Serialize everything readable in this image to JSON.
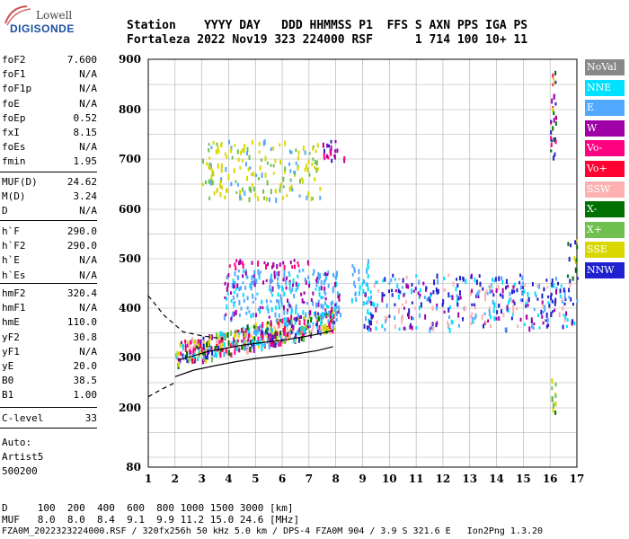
{
  "logo": {
    "top": "Lowell",
    "bottom": "DIGISONDE"
  },
  "header": {
    "row1": "Station    YYYY DAY   DDD HHMMSS P1  FFS S AXN PPS IGA PS",
    "row2": "Fortaleza 2022 Nov19 323 224000 RSF      1 714 100 10+ 11"
  },
  "params_group1": [
    {
      "label": "foF2",
      "value": "7.600"
    },
    {
      "label": "foF1",
      "value": "N/A"
    },
    {
      "label": "foF1p",
      "value": "N/A"
    },
    {
      "label": "foE",
      "value": "N/A"
    },
    {
      "label": "foEp",
      "value": "0.52"
    },
    {
      "label": "fxI",
      "value": "8.15"
    },
    {
      "label": "foEs",
      "value": "N/A"
    },
    {
      "label": "fmin",
      "value": "1.95"
    }
  ],
  "params_group2": [
    {
      "label": "MUF(D)",
      "value": "24.62"
    },
    {
      "label": "M(D)",
      "value": "3.24"
    },
    {
      "label": "D",
      "value": "N/A"
    }
  ],
  "params_group3": [
    {
      "label": "h`F",
      "value": "290.0"
    },
    {
      "label": "h`F2",
      "value": "290.0"
    },
    {
      "label": "h`E",
      "value": "N/A"
    },
    {
      "label": "h`Es",
      "value": "N/A"
    }
  ],
  "params_group4": [
    {
      "label": "hmF2",
      "value": "320.4"
    },
    {
      "label": "hmF1",
      "value": "N/A"
    },
    {
      "label": "hmE",
      "value": "110.0"
    },
    {
      "label": "yF2",
      "value": "30.8"
    },
    {
      "label": "yF1",
      "value": "N/A"
    },
    {
      "label": "yE",
      "value": "20.0"
    },
    {
      "label": "B0",
      "value": "38.5"
    },
    {
      "label": "B1",
      "value": "1.00"
    }
  ],
  "params_group5": [
    {
      "label": "C-level",
      "value": "33"
    }
  ],
  "auto": {
    "line1": "Auto:",
    "line2": "Artist5",
    "line3": "500200"
  },
  "legend": [
    {
      "label": "NoVal",
      "color": "#888888"
    },
    {
      "label": "NNE",
      "color": "#00e0ff"
    },
    {
      "label": "E",
      "color": "#50a8ff"
    },
    {
      "label": "W",
      "color": "#a000a8"
    },
    {
      "label": "Vo-",
      "color": "#ff0080"
    },
    {
      "label": "Vo+",
      "color": "#ff0030"
    },
    {
      "label": "SSW",
      "color": "#ffb0b0"
    },
    {
      "label": "X-",
      "color": "#007000"
    },
    {
      "label": "X+",
      "color": "#70c050"
    },
    {
      "label": "SSE",
      "color": "#d8d800"
    },
    {
      "label": "NNW",
      "color": "#2020d0"
    }
  ],
  "chart_data": {
    "type": "scatter",
    "xlim": [
      1,
      17
    ],
    "ylim": [
      80,
      900
    ],
    "x_ticks": [
      "1",
      "2",
      "3",
      "4",
      "5",
      "6",
      "7",
      "8",
      "9",
      "10",
      "11",
      "12",
      "13",
      "14",
      "15",
      "16",
      "17"
    ],
    "y_ticks": [
      "900",
      "800",
      "700",
      "600",
      "500",
      "400",
      "300",
      "200",
      "80"
    ],
    "grid": true,
    "profile_line": [
      [
        2.1,
        295
      ],
      [
        2.6,
        302
      ],
      [
        3.2,
        312
      ],
      [
        3.8,
        318
      ],
      [
        4.5,
        325
      ],
      [
        5.2,
        330
      ],
      [
        6.0,
        335
      ],
      [
        6.8,
        342
      ],
      [
        7.4,
        348
      ],
      [
        7.9,
        355
      ]
    ],
    "profile_line_lower": [
      [
        1.0,
        425
      ],
      [
        1.6,
        385
      ],
      [
        2.3,
        352
      ],
      [
        3.0,
        344
      ],
      [
        3.8,
        338
      ]
    ],
    "trace_lower": [
      [
        2.0,
        262
      ],
      [
        2.7,
        275
      ],
      [
        3.5,
        284
      ],
      [
        4.3,
        292
      ],
      [
        5.0,
        298
      ],
      [
        5.8,
        303
      ],
      [
        6.6,
        308
      ],
      [
        7.3,
        314
      ],
      [
        7.9,
        322
      ]
    ],
    "trace_lower2": [
      [
        1.0,
        222
      ],
      [
        1.5,
        237
      ],
      [
        2.0,
        250
      ]
    ]
  },
  "bottom": {
    "row_d": "D     100  200  400  600  800 1000 1500 3000 [km]",
    "row_muf": "MUF   8.0  8.0  8.4  9.1  9.9 11.2 15.0 24.6 [MHz]",
    "footer": "FZA0M_2022323224000.RSF / 320fx256h 50 kHz 5.0 km / DPS-4 FZA0M 904 / 3.9 S 321.6 E   Ion2Png 1.3.20"
  }
}
